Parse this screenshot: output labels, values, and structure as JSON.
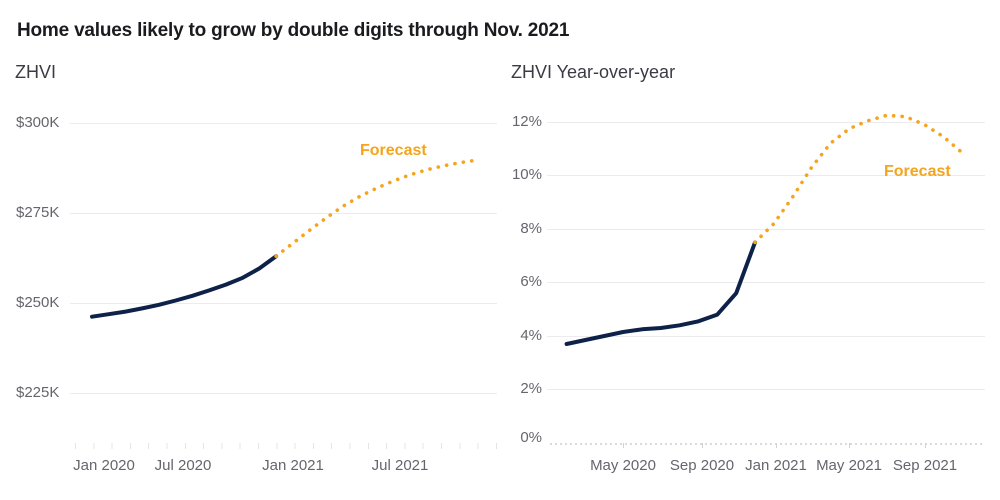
{
  "title": "Home values likely to grow by double digits through Nov. 2021",
  "colors": {
    "historical_line": "#0e2249",
    "forecast_line": "#f4a41d",
    "gridline": "#ececee",
    "axis_text": "#65656d",
    "title_text": "#1b1b1f",
    "subtitle_text": "#3b3b44"
  },
  "chart_data": [
    {
      "type": "line",
      "title": "ZHVI",
      "xlabel": "",
      "ylabel": "",
      "unit": "US dollars, thousands",
      "grid": true,
      "legend": "none",
      "ylim": [
        225,
        300
      ],
      "annotation": {
        "text": "Forecast"
      },
      "x": [
        "Dec 2019",
        "Jan 2020",
        "Feb 2020",
        "Mar 2020",
        "Apr 2020",
        "May 2020",
        "Jun 2020",
        "Jul 2020",
        "Aug 2020",
        "Sep 2020",
        "Oct 2020",
        "Nov 2020",
        "Dec 2020",
        "Jan 2021",
        "Feb 2021",
        "Mar 2021",
        "Apr 2021",
        "May 2021",
        "Jun 2021",
        "Jul 2021",
        "Aug 2021",
        "Sep 2021",
        "Oct 2021",
        "Nov 2021"
      ],
      "x_ticks": [
        {
          "label": "Jan 2020"
        },
        {
          "label": "Jul 2020"
        },
        {
          "label": "Jan 2021"
        },
        {
          "label": "Jul 2021"
        }
      ],
      "y_ticks": [
        {
          "label": "$300K",
          "value": 300
        },
        {
          "label": "$275K",
          "value": 275
        },
        {
          "label": "$250K",
          "value": 250
        },
        {
          "label": "$225K",
          "value": 225
        }
      ],
      "series": [
        {
          "name": "ZHVI historical",
          "style": "solid",
          "color": "#0e2249",
          "start_index": 0,
          "values": [
            246.2,
            246.9,
            247.6,
            248.5,
            249.5,
            250.7,
            252.0,
            253.5,
            255.1,
            257.0,
            259.6,
            263.0
          ]
        },
        {
          "name": "ZHVI forecast",
          "style": "dotted",
          "color": "#f4a41d",
          "start_index": 11,
          "values": [
            263.0,
            266.6,
            270.2,
            273.7,
            276.9,
            279.6,
            281.9,
            283.9,
            285.6,
            287.0,
            288.1,
            289.0,
            289.7
          ]
        }
      ]
    },
    {
      "type": "line",
      "title": "ZHVI Year-over-year",
      "xlabel": "",
      "ylabel": "",
      "unit": "percent",
      "grid": true,
      "legend": "none",
      "ylim": [
        0,
        12.5
      ],
      "annotation": {
        "text": "Forecast"
      },
      "x": [
        "Feb 2020",
        "Mar 2020",
        "Apr 2020",
        "May 2020",
        "Jun 2020",
        "Jul 2020",
        "Aug 2020",
        "Sep 2020",
        "Oct 2020",
        "Nov 2020",
        "Dec 2020",
        "Jan 2021",
        "Feb 2021",
        "Mar 2021",
        "Apr 2021",
        "May 2021",
        "Jun 2021",
        "Jul 2021",
        "Aug 2021",
        "Sep 2021",
        "Oct 2021",
        "Nov 2021"
      ],
      "x_ticks": [
        {
          "label": "May 2020"
        },
        {
          "label": "Sep 2020"
        },
        {
          "label": "Jan 2021"
        },
        {
          "label": "May 2021"
        },
        {
          "label": "Sep 2021"
        }
      ],
      "y_ticks": [
        {
          "label": "12%",
          "value": 12
        },
        {
          "label": "10%",
          "value": 10
        },
        {
          "label": "8%",
          "value": 8
        },
        {
          "label": "6%",
          "value": 6
        },
        {
          "label": "4%",
          "value": 4
        },
        {
          "label": "2%",
          "value": 2
        },
        {
          "label": "0%",
          "value": 0
        }
      ],
      "series": [
        {
          "name": "YoY growth historical",
          "style": "solid",
          "color": "#0e2249",
          "start_index": 0,
          "values": [
            3.7,
            3.85,
            4.0,
            4.15,
            4.25,
            4.3,
            4.4,
            4.55,
            4.8,
            5.6,
            7.5
          ]
        },
        {
          "name": "YoY growth forecast",
          "style": "dotted",
          "color": "#f4a41d",
          "start_index": 10,
          "values": [
            7.5,
            8.2,
            9.2,
            10.3,
            11.2,
            11.75,
            12.05,
            12.25,
            12.2,
            11.9,
            11.45,
            10.85
          ]
        }
      ]
    }
  ]
}
